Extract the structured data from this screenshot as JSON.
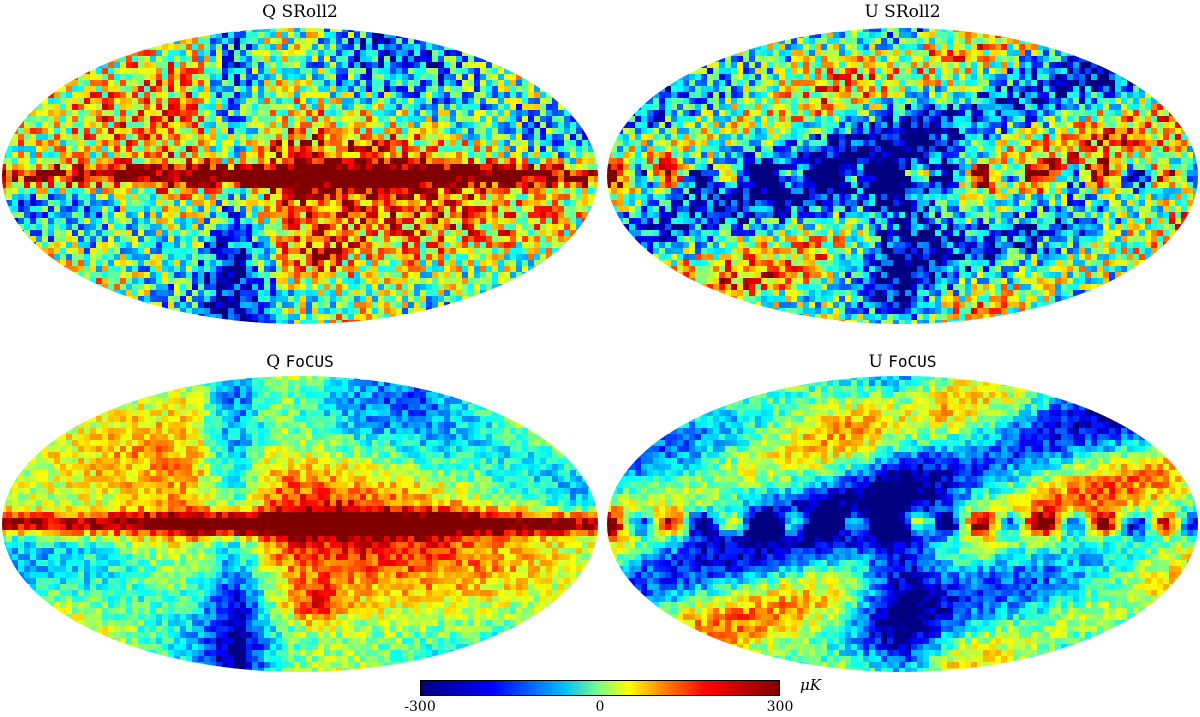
{
  "panels": [
    {
      "id": "q-sroll2",
      "stokes": "Q",
      "method": "SRoll2",
      "method_style": "serif"
    },
    {
      "id": "u-sroll2",
      "stokes": "U",
      "method": "SRoll2",
      "method_style": "serif"
    },
    {
      "id": "q-focus",
      "stokes": "Q",
      "method": "FoCUS",
      "method_style": "mono"
    },
    {
      "id": "u-focus",
      "stokes": "U",
      "method": "FoCUS",
      "method_style": "mono"
    }
  ],
  "colorbar": {
    "min_label": "-300",
    "mid_label": "0",
    "max_label": "300",
    "unit": "μK",
    "colormap": "jet",
    "colors": [
      "#00007f",
      "#0000ff",
      "#00bfff",
      "#7fff7f",
      "#ffff00",
      "#ff7f00",
      "#ff0000",
      "#7f0000"
    ]
  },
  "projection": "mollweide"
}
